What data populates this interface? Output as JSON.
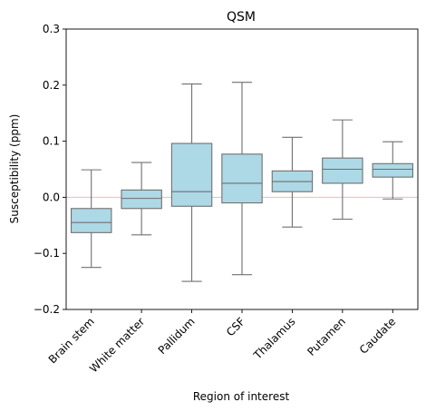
{
  "chart_data": {
    "type": "box",
    "title": "QSM",
    "xlabel": "Region of interest",
    "ylabel": "Susceptibility (ppm)",
    "ylim": [
      -0.2,
      0.3
    ],
    "yticks": [
      "−0.2",
      "−0.1",
      "0.0",
      "0.1",
      "0.2",
      "0.3"
    ],
    "ytick_values": [
      -0.2,
      -0.1,
      0.0,
      0.1,
      0.2,
      0.3
    ],
    "reference_line": 0.0,
    "grid": false,
    "colors": {
      "box_fill": "#add8e6",
      "box_edge": "#707070",
      "reference_line": "#f4b6c2"
    },
    "categories": [
      "Brain stem",
      "White matter",
      "Pallidum",
      "CSF",
      "Thalamus",
      "Putamen",
      "Caudate"
    ],
    "boxes": [
      {
        "whisker_low": -0.125,
        "q1": -0.063,
        "median": -0.045,
        "q3": -0.02,
        "whisker_high": 0.049
      },
      {
        "whisker_low": -0.067,
        "q1": -0.02,
        "median": -0.002,
        "q3": 0.013,
        "whisker_high": 0.062
      },
      {
        "whisker_low": -0.15,
        "q1": -0.016,
        "median": 0.01,
        "q3": 0.096,
        "whisker_high": 0.202
      },
      {
        "whisker_low": -0.138,
        "q1": -0.01,
        "median": 0.025,
        "q3": 0.077,
        "whisker_high": 0.205
      },
      {
        "whisker_low": -0.053,
        "q1": 0.01,
        "median": 0.028,
        "q3": 0.047,
        "whisker_high": 0.107
      },
      {
        "whisker_low": -0.039,
        "q1": 0.025,
        "median": 0.05,
        "q3": 0.07,
        "whisker_high": 0.138
      },
      {
        "whisker_low": -0.003,
        "q1": 0.036,
        "median": 0.05,
        "q3": 0.06,
        "whisker_high": 0.099
      }
    ]
  }
}
